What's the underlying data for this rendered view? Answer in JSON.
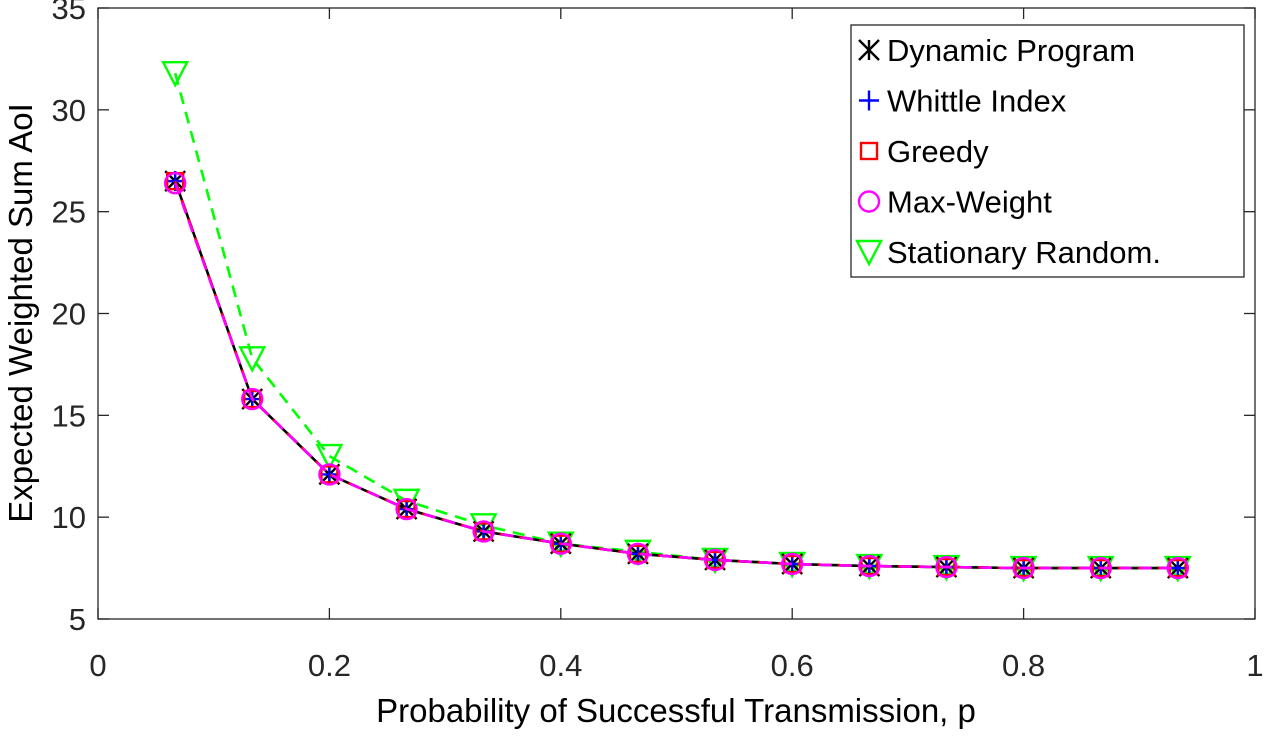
{
  "chart_data": {
    "type": "line",
    "title": "",
    "xlabel": "Probability of Successful Transmission, p",
    "ylabel": "Expected Weighted Sum AoI",
    "xlim": [
      0,
      1
    ],
    "ylim": [
      5,
      35
    ],
    "xticks": [
      0,
      0.2,
      0.4,
      0.6,
      0.8,
      1
    ],
    "xtick_labels": [
      "0",
      "0.2",
      "0.4",
      "0.6",
      "0.8",
      "1"
    ],
    "yticks": [
      5,
      10,
      15,
      20,
      25,
      30,
      35
    ],
    "ytick_labels": [
      "5",
      "10",
      "15",
      "20",
      "25",
      "30",
      "35"
    ],
    "grid": false,
    "legend_position": "top-right",
    "x": [
      0.0667,
      0.1333,
      0.2,
      0.2667,
      0.3333,
      0.4,
      0.4667,
      0.5333,
      0.6,
      0.6667,
      0.7333,
      0.8,
      0.8667,
      0.9333
    ],
    "series": [
      {
        "name": "Dynamic Program",
        "color": "#000000",
        "marker": "x-star",
        "line_style": "solid",
        "values": [
          26.5,
          15.8,
          12.1,
          10.4,
          9.3,
          8.7,
          8.2,
          7.9,
          7.7,
          7.6,
          7.55,
          7.5,
          7.5,
          7.5
        ]
      },
      {
        "name": "Whittle Index",
        "color": "#0000ff",
        "marker": "plus",
        "line_style": "dashed",
        "values": [
          26.5,
          15.8,
          12.1,
          10.4,
          9.3,
          8.7,
          8.2,
          7.9,
          7.7,
          7.6,
          7.55,
          7.5,
          7.5,
          7.5
        ]
      },
      {
        "name": "Greedy",
        "color": "#ff0000",
        "marker": "square",
        "line_style": "dashed",
        "values": [
          26.5,
          15.8,
          12.1,
          10.4,
          9.3,
          8.7,
          8.2,
          7.9,
          7.7,
          7.6,
          7.55,
          7.5,
          7.5,
          7.5
        ]
      },
      {
        "name": "Max-Weight",
        "color": "#ff00ff",
        "marker": "circle",
        "line_style": "dashed",
        "values": [
          26.4,
          15.8,
          12.1,
          10.4,
          9.3,
          8.7,
          8.2,
          7.9,
          7.7,
          7.6,
          7.55,
          7.5,
          7.5,
          7.5
        ]
      },
      {
        "name": "Stationary Random.",
        "color": "#00ff00",
        "marker": "triangle-down",
        "line_style": "dashed",
        "values": [
          31.8,
          17.8,
          13.0,
          10.8,
          9.6,
          8.7,
          8.3,
          7.9,
          7.7,
          7.6,
          7.55,
          7.5,
          7.5,
          7.5
        ]
      }
    ]
  }
}
